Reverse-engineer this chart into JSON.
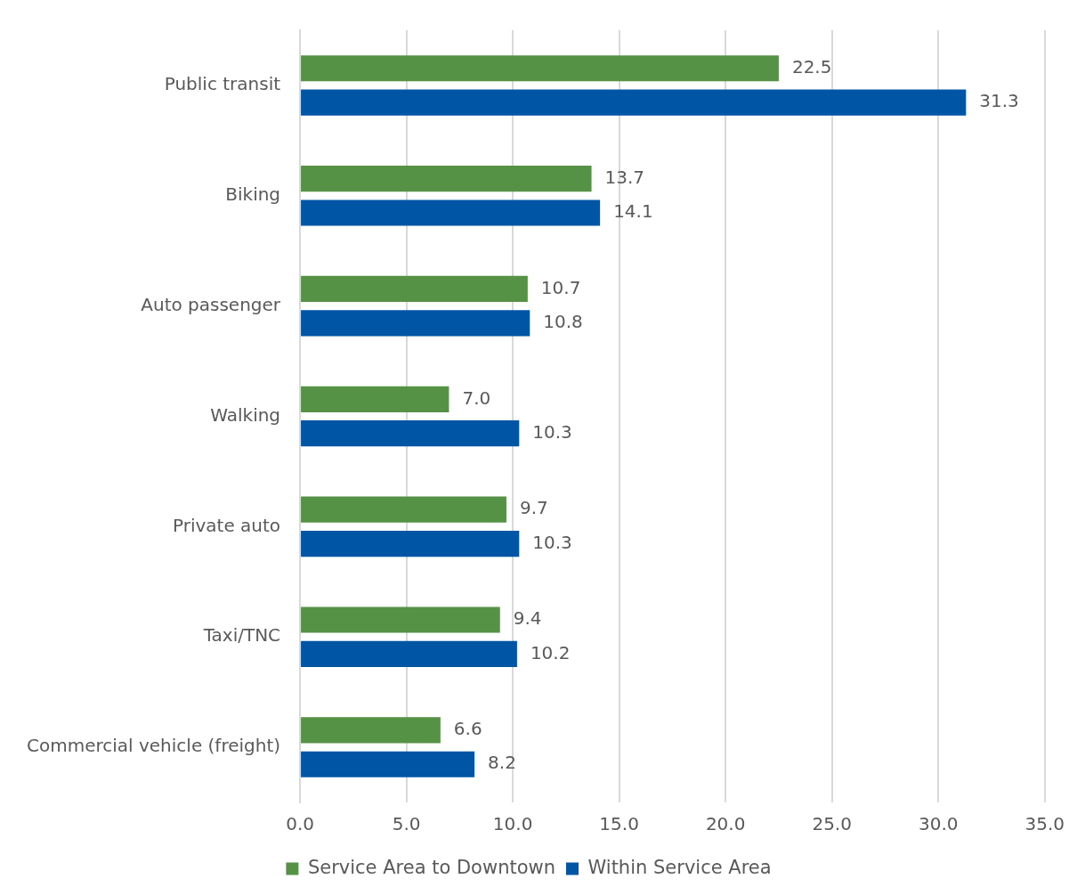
{
  "chart_data": {
    "type": "bar",
    "orientation": "horizontal",
    "categories": [
      "Public transit",
      "Biking",
      "Auto passenger",
      "Walking",
      "Private auto",
      "Taxi/TNC",
      "Commercial vehicle (freight)"
    ],
    "series": [
      {
        "name": "Service Area to Downtown",
        "color": "#559245",
        "values": [
          22.5,
          13.7,
          10.7,
          7.0,
          9.7,
          9.4,
          6.6
        ],
        "value_labels": [
          "22.5",
          "13.7",
          "10.7",
          "7.0",
          "9.7",
          "9.4",
          "6.6"
        ]
      },
      {
        "name": "Within Service Area",
        "color": "#0055a4",
        "values": [
          31.3,
          14.1,
          10.8,
          10.3,
          10.3,
          10.2,
          8.2
        ],
        "value_labels": [
          "31.3",
          "14.1",
          "10.8",
          "10.3",
          "10.3",
          "10.2",
          "8.2"
        ]
      }
    ],
    "xlim": [
      0,
      35
    ],
    "xticks": [
      {
        "value": 0,
        "label": "0.0"
      },
      {
        "value": 5,
        "label": "5.0"
      },
      {
        "value": 10,
        "label": "10.0"
      },
      {
        "value": 15,
        "label": "15.0"
      },
      {
        "value": 20,
        "label": "20.0"
      },
      {
        "value": 25,
        "label": "25.0"
      },
      {
        "value": 30,
        "label": "30.0"
      },
      {
        "value": 35,
        "label": "35.0"
      }
    ],
    "grid": "x",
    "legend": "bottom"
  }
}
